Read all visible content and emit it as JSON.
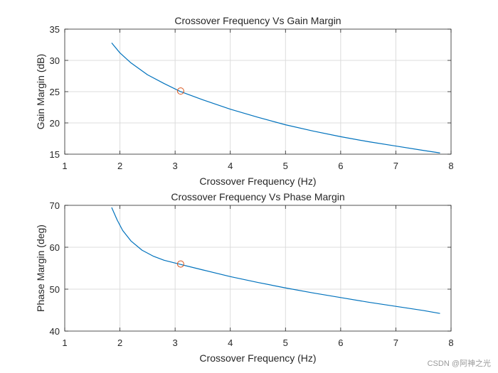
{
  "watermark": "CSDN @阿神之光",
  "chart_data": [
    {
      "type": "line",
      "title": "Crossover Frequency Vs Gain Margin",
      "xlabel": "Crossover Frequency (Hz)",
      "ylabel": "Gain Margin (dB)",
      "xlim": [
        1,
        8
      ],
      "ylim": [
        15,
        35
      ],
      "xticks": [
        1,
        2,
        3,
        4,
        5,
        6,
        7,
        8
      ],
      "yticks": [
        15,
        20,
        25,
        30,
        35
      ],
      "grid": true,
      "series": [
        {
          "name": "Gain Margin",
          "color": "#0072BD",
          "x": [
            1.85,
            2.0,
            2.2,
            2.5,
            2.8,
            3.1,
            3.5,
            4.0,
            4.5,
            5.0,
            5.5,
            6.0,
            6.5,
            7.0,
            7.5,
            7.8
          ],
          "y": [
            32.8,
            31.2,
            29.6,
            27.7,
            26.3,
            25.0,
            23.7,
            22.2,
            20.9,
            19.7,
            18.7,
            17.8,
            17.0,
            16.3,
            15.6,
            15.2
          ]
        }
      ],
      "marker": {
        "x": 3.1,
        "y": 25.1,
        "color": "#D95319",
        "shape": "circle"
      }
    },
    {
      "type": "line",
      "title": "Crossover Frequency Vs Phase Margin",
      "xlabel": "Crossover Frequency (Hz)",
      "ylabel": "Phase Margin (deg)",
      "xlim": [
        1,
        8
      ],
      "ylim": [
        40,
        70
      ],
      "xticks": [
        1,
        2,
        3,
        4,
        5,
        6,
        7,
        8
      ],
      "yticks": [
        40,
        50,
        60,
        70
      ],
      "grid": true,
      "series": [
        {
          "name": "Phase Margin",
          "color": "#0072BD",
          "x": [
            1.85,
            1.95,
            2.05,
            2.2,
            2.4,
            2.6,
            2.8,
            3.1,
            3.5,
            4.0,
            4.5,
            5.0,
            5.5,
            6.0,
            6.5,
            7.0,
            7.5,
            7.8
          ],
          "y": [
            69.5,
            66.5,
            64.0,
            61.5,
            59.3,
            57.9,
            56.9,
            55.9,
            54.6,
            53.0,
            51.6,
            50.3,
            49.1,
            48.0,
            46.9,
            45.9,
            44.9,
            44.2
          ]
        }
      ],
      "marker": {
        "x": 3.1,
        "y": 56.0,
        "color": "#D95319",
        "shape": "circle"
      }
    }
  ]
}
